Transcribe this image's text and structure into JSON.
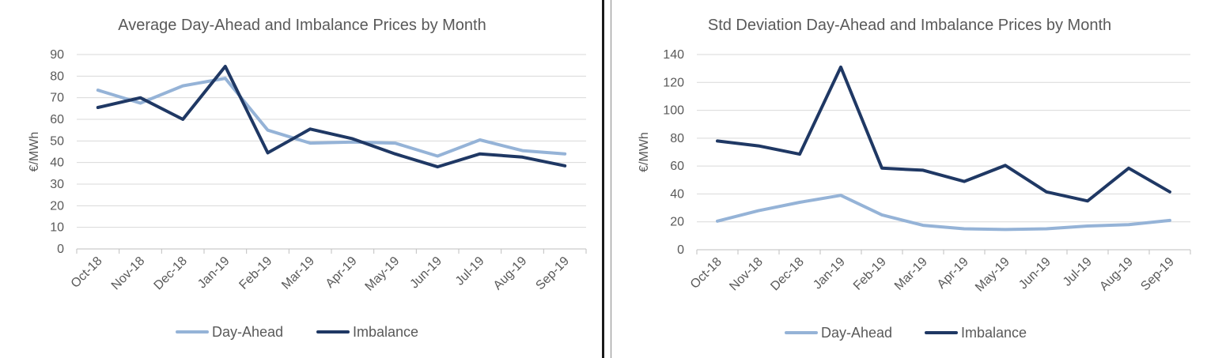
{
  "colors": {
    "day_ahead": "#95B3D7",
    "imbalance": "#1F3864",
    "grid": "#D9D9D9",
    "axis": "#BFBFBF",
    "text": "#595959"
  },
  "chart_data": [
    {
      "type": "line",
      "title": "Average Day-Ahead and Imbalance Prices by Month",
      "xlabel": "",
      "ylabel": "€/MWh",
      "ylim": [
        0,
        90
      ],
      "yticks": [
        "0",
        "10",
        "20",
        "30",
        "40",
        "50",
        "60",
        "70",
        "80",
        "90"
      ],
      "categories": [
        "Oct-18",
        "Nov-18",
        "Dec-18",
        "Jan-19",
        "Feb-19",
        "Mar-19",
        "Apr-19",
        "May-19",
        "Jun-19",
        "Jul-19",
        "Aug-19",
        "Sep-19"
      ],
      "series": [
        {
          "name": "Day-Ahead",
          "color": "#95B3D7",
          "values": [
            73.5,
            67.5,
            75.5,
            79,
            55,
            49,
            49.5,
            49,
            43,
            50.5,
            45.5,
            44
          ]
        },
        {
          "name": "Imbalance",
          "color": "#1F3864",
          "values": [
            65.5,
            70,
            60,
            84.5,
            44.5,
            55.5,
            51,
            44,
            38,
            44,
            42.5,
            38.5
          ]
        }
      ],
      "grid": true,
      "legend": "bottom"
    },
    {
      "type": "line",
      "title": "Std Deviation Day-Ahead and Imbalance Prices by Month",
      "xlabel": "",
      "ylabel": "€/MWh",
      "ylim": [
        0,
        140
      ],
      "yticks": [
        "0",
        "20",
        "40",
        "60",
        "80",
        "100",
        "120",
        "140"
      ],
      "categories": [
        "Oct-18",
        "Nov-18",
        "Dec-18",
        "Jan-19",
        "Feb-19",
        "Mar-19",
        "Apr-19",
        "May-19",
        "Jun-19",
        "Jul-19",
        "Aug-19",
        "Sep-19"
      ],
      "series": [
        {
          "name": "Day-Ahead",
          "color": "#95B3D7",
          "values": [
            20.5,
            28,
            34,
            39,
            25,
            17.5,
            15,
            14.5,
            15,
            17,
            18,
            21
          ]
        },
        {
          "name": "Imbalance",
          "color": "#1F3864",
          "values": [
            78,
            74.5,
            68.5,
            131,
            58.5,
            57,
            49,
            60.5,
            41.5,
            35,
            58.5,
            41.5
          ]
        }
      ],
      "grid": true,
      "legend": "bottom"
    }
  ]
}
